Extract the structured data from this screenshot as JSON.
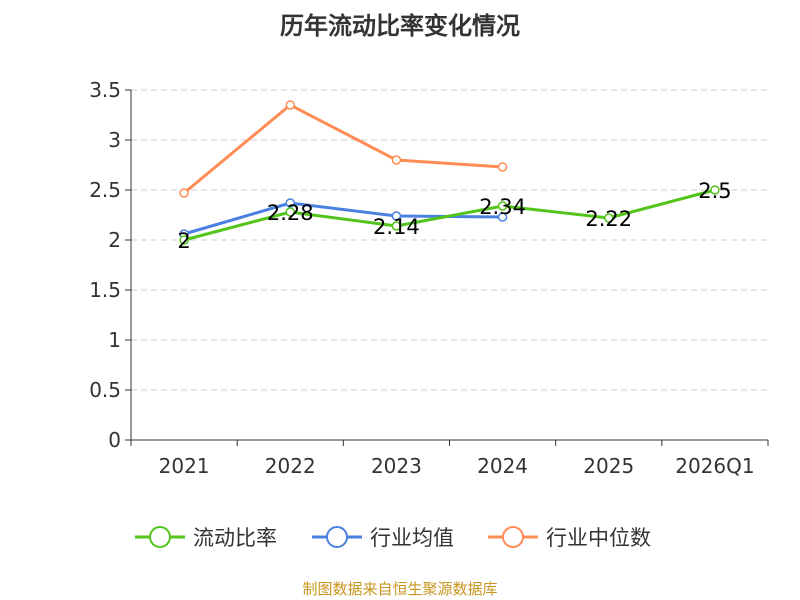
{
  "chart_data": {
    "type": "line",
    "title": "历年流动比率变化情况",
    "categories": [
      "2021",
      "2022",
      "2023",
      "2024",
      "2025",
      "2026Q1"
    ],
    "ylim": [
      0,
      3.5
    ],
    "yticks": [
      "0",
      "0.5",
      "1",
      "1.5",
      "2",
      "2.5",
      "3",
      "3.5"
    ],
    "grid": true,
    "legend_position": "bottom",
    "series": [
      {
        "name": "流动比率",
        "color": "#52c41a",
        "values": [
          2,
          2.28,
          2.14,
          2.34,
          2.22,
          2.5
        ],
        "labels": [
          "2",
          "2.28",
          "2.14",
          "2.34",
          "2.22",
          "2.5"
        ]
      },
      {
        "name": "行业均值",
        "color": "#4a80e0",
        "values": [
          2.06,
          2.37,
          2.24,
          2.23,
          null,
          null
        ]
      },
      {
        "name": "行业中位数",
        "color": "#ff8c55",
        "values": [
          2.47,
          3.35,
          2.8,
          2.73,
          null,
          null
        ]
      }
    ]
  },
  "source": "制图数据来自恒生聚源数据库"
}
